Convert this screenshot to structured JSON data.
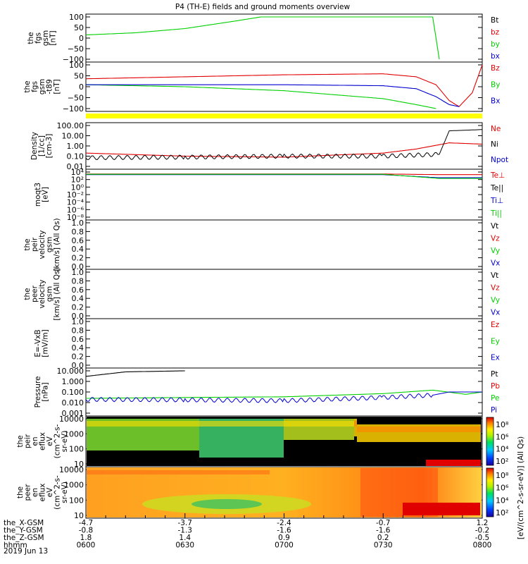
{
  "title": "P4 (TH-E) fields and ground moments overview",
  "date_label": "2019 Jun 13",
  "colors": {
    "red": "#e00000",
    "green": "#00d000",
    "blue": "#0000d0",
    "black": "#000000",
    "yellow": "#ffff00"
  },
  "panels": [
    {
      "id": "fgs",
      "ylabel": [
        "the",
        "fgs",
        "gsm",
        "[nT]"
      ],
      "ticks": [
        "100",
        "50",
        "0",
        "−50",
        "−100"
      ],
      "legend": [
        {
          "text": "Bt",
          "color": "#000000"
        },
        {
          "text": "bz",
          "color": "#e00000"
        },
        {
          "text": "by",
          "color": "#00d000"
        },
        {
          "text": "bx",
          "color": "#0000d0"
        }
      ]
    },
    {
      "id": "fgs_t89",
      "ylabel": [
        "the",
        "fgs",
        "gsm",
        "-t89",
        "[nT]"
      ],
      "ticks": [
        "100",
        "50",
        "0",
        "−50",
        "−100"
      ],
      "legend": [
        {
          "text": "Bz",
          "color": "#e00000"
        },
        {
          "text": "By",
          "color": "#00d000"
        },
        {
          "text": "Bx",
          "color": "#0000d0"
        }
      ]
    },
    {
      "id": "density",
      "ylabel": [
        "Density",
        "[1/cc]",
        "[cm-3]"
      ],
      "ticks": [
        "100.00",
        "10.00",
        "1.00",
        "0.10",
        "0.01"
      ],
      "legend": [
        {
          "text": "Ne",
          "color": "#e00000"
        },
        {
          "text": "Ni",
          "color": "#000000"
        },
        {
          "text": "Npot",
          "color": "#0000d0"
        }
      ]
    },
    {
      "id": "temp",
      "ylabel": [
        "moqt3",
        "[eV]"
      ],
      "ticks": [
        "10⁴",
        "10²",
        "10⁰",
        "10⁻²",
        "10⁻⁴",
        "10⁻⁶",
        "10⁻⁸"
      ],
      "legend": [
        {
          "text": "Te⊥",
          "color": "#e00000"
        },
        {
          "text": "Te||",
          "color": "#000000"
        },
        {
          "text": "Ti⊥",
          "color": "#0000d0"
        },
        {
          "text": "Ti||",
          "color": "#00d000"
        }
      ]
    },
    {
      "id": "peir_vel",
      "ylabel": [
        "the",
        "peir",
        "velocity",
        "gsm",
        "[km/s] (All Qs)"
      ],
      "ticks": [
        "1.0",
        "0.8",
        "0.6",
        "0.4",
        "0.2",
        "0.0"
      ],
      "legend": [
        {
          "text": "Vt",
          "color": "#000000"
        },
        {
          "text": "Vz",
          "color": "#e00000"
        },
        {
          "text": "Vy",
          "color": "#00d000"
        },
        {
          "text": "Vx",
          "color": "#0000d0"
        }
      ]
    },
    {
      "id": "peer_vel",
      "ylabel": [
        "the",
        "peer",
        "velocity",
        "gsm",
        "[km/s] (All Qs)"
      ],
      "ticks": [
        "1.0",
        "0.8",
        "0.6",
        "0.4",
        "0.2",
        "0.0"
      ],
      "legend": [
        {
          "text": "Vt",
          "color": "#000000"
        },
        {
          "text": "Vz",
          "color": "#e00000"
        },
        {
          "text": "Vy",
          "color": "#00d000"
        },
        {
          "text": "Vx",
          "color": "#0000d0"
        }
      ]
    },
    {
      "id": "efield",
      "ylabel": [
        "E=-VxB",
        "[mV/m]"
      ],
      "ticks": [
        "1.0",
        "0.8",
        "0.6",
        "0.4",
        "0.2",
        "0.0"
      ],
      "legend": [
        {
          "text": "Ez",
          "color": "#e00000"
        },
        {
          "text": "Ey",
          "color": "#00d000"
        },
        {
          "text": "Ex",
          "color": "#0000d0"
        }
      ]
    },
    {
      "id": "pressure",
      "ylabel": [
        "Pressure",
        "[nPa]"
      ],
      "ticks": [
        "10.000",
        "1.000",
        "0.100",
        "0.010",
        "0.001"
      ],
      "legend": [
        {
          "text": "Pt",
          "color": "#000000"
        },
        {
          "text": "Pb",
          "color": "#e00000"
        },
        {
          "text": "Pe",
          "color": "#00d000"
        },
        {
          "text": "Pi",
          "color": "#0000d0"
        }
      ]
    },
    {
      "id": "peir_spec",
      "ylabel": [
        "the",
        "peir",
        "en",
        "eflux",
        "eV",
        "(cm^2-s-",
        "sr-eV)"
      ],
      "ticks": [
        "10000",
        "1000",
        "100",
        "10"
      ],
      "colorbar_ticks": [
        "10⁸",
        "10⁶",
        "10⁴",
        "10²"
      ],
      "colorbar_label": "[eV/(cm^2-s-sr-eV)] (All Qs)"
    },
    {
      "id": "peer_spec",
      "ylabel": [
        "the",
        "peer",
        "en",
        "eflux",
        "eV",
        "(cm^2-s-",
        "sr-eV)"
      ],
      "ticks": [
        "10000",
        "1000",
        "100",
        "10"
      ],
      "colorbar_ticks": [
        "10⁸",
        "10⁶",
        "10⁴",
        "10²"
      ],
      "colorbar_label": "[eV/(cm^2-s-sr-eV)] (All Qs)"
    }
  ],
  "x_axis": {
    "rows": [
      {
        "label": "the_X-GSM",
        "values": [
          "-4.7",
          "-3.7",
          "-2.4",
          "-0.7",
          "1.2"
        ]
      },
      {
        "label": "the_Y-GSM",
        "values": [
          "-0.8",
          "-1.3",
          "-1.6",
          "-1.6",
          "-0.2"
        ]
      },
      {
        "label": "the_Z-GSM",
        "values": [
          "1.8",
          "1.4",
          "0.9",
          "0.2",
          "-0.5"
        ]
      },
      {
        "label": "hhmm",
        "values": [
          "0600",
          "0630",
          "0700",
          "0730",
          "0800"
        ]
      }
    ]
  },
  "chart_data": {
    "type": "line",
    "title": "P4 (TH-E) fields and ground moments overview",
    "x_label": "hhmm",
    "x_range": [
      "0600",
      "0800"
    ],
    "x_ticks": [
      "0600",
      "0630",
      "0700",
      "0730",
      "0800"
    ],
    "panels": [
      {
        "name": "the fgs gsm [nT]",
        "ylim": [
          -100,
          100
        ],
        "series": [
          {
            "name": "by",
            "x": [
              "0600",
              "0615",
              "0630",
              "0645",
              "0653",
              "0745",
              "0747"
            ],
            "values": [
              15,
              25,
              45,
              80,
              100,
              100,
              -100
            ]
          }
        ]
      },
      {
        "name": "the fgs gsm -t89 [nT]",
        "ylim": [
          -120,
          100
        ],
        "series": [
          {
            "name": "Bz",
            "x": [
              "0600",
              "0630",
              "0700",
              "0730",
              "0740",
              "0746",
              "0750",
              "0753",
              "0757",
              "0800"
            ],
            "values": [
              30,
              40,
              50,
              55,
              40,
              0,
              -80,
              -110,
              -40,
              100
            ]
          },
          {
            "name": "By",
            "x": [
              "0600",
              "0630",
              "0700",
              "0730",
              "0740",
              "0746"
            ],
            "values": [
              0,
              -10,
              -30,
              -70,
              -100,
              -120
            ]
          },
          {
            "name": "Bx",
            "x": [
              "0600",
              "0630",
              "0700",
              "0730",
              "0740",
              "0746",
              "0750",
              "0753"
            ],
            "values": [
              0,
              0,
              0,
              -5,
              -20,
              -60,
              -100,
              -110
            ]
          }
        ]
      },
      {
        "name": "Density [1/cc]",
        "ylim": [
          0.01,
          100
        ],
        "log": true,
        "series": [
          {
            "name": "Ne",
            "x": [
              "0600",
              "0630",
              "0700",
              "0730",
              "0740",
              "0750",
              "0800"
            ],
            "values": [
              0.2,
              0.1,
              0.08,
              0.2,
              0.5,
              2,
              1.5
            ]
          },
          {
            "name": "Ni",
            "x": [
              "0600",
              "0630",
              "0700",
              "0730",
              "0747",
              "0750",
              "0800"
            ],
            "values": [
              0.07,
              0.08,
              0.1,
              0.1,
              0.15,
              30,
              40
            ]
          }
        ]
      },
      {
        "name": "moqt3 [eV]",
        "ylim": [
          1e-08,
          10000.0
        ],
        "log": true,
        "series": [
          {
            "name": "Te⊥",
            "x": [
              "0600",
              "0730",
              "0747",
              "0800"
            ],
            "values": [
              3000,
              3000,
              2000,
              2000
            ]
          },
          {
            "name": "Ti⊥",
            "x": [
              "0600",
              "0730",
              "0747",
              "0800"
            ],
            "values": [
              2000,
              2000,
              300,
              300
            ]
          },
          {
            "name": "Ti||",
            "x": [
              "0600",
              "0730",
              "0747",
              "0800"
            ],
            "values": [
              2500,
              2500,
              200,
              200
            ]
          }
        ]
      },
      {
        "name": "Pressure [nPa]",
        "ylim": [
          0.001,
          10
        ],
        "log": true,
        "series": [
          {
            "name": "Pt",
            "x": [
              "0600",
              "0612",
              "0630"
            ],
            "values": [
              3,
              8,
              10
            ]
          },
          {
            "name": "Pe",
            "x": [
              "0600",
              "0630",
              "0700",
              "0730",
              "0745",
              "0755",
              "0800"
            ],
            "values": [
              0.025,
              0.03,
              0.035,
              0.07,
              0.15,
              0.06,
              0.1
            ]
          },
          {
            "name": "Pi",
            "x": [
              "0600",
              "0630",
              "0700",
              "0730",
              "0745",
              "0750",
              "0800"
            ],
            "values": [
              0.02,
              0.018,
              0.015,
              0.03,
              0.05,
              0.1,
              0.1
            ]
          }
        ]
      }
    ]
  }
}
